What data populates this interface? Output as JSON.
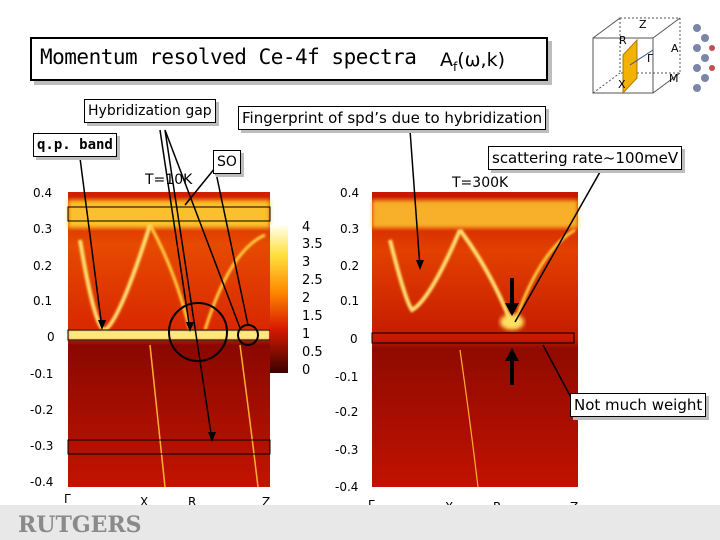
{
  "slide": {
    "title": "Momentum resolved Ce-4f spectra",
    "formula_main": "A",
    "formula_sub": "f",
    "formula_tail": "(ω,k)"
  },
  "annotations": {
    "hybridization_gap": "Hybridization gap",
    "fingerprint": "Fingerprint of spd’s due to hybridization",
    "qp_band": "q.p. band",
    "so": "SO",
    "scattering_rate": "scattering rate~100meV",
    "not_much_weight": "Not much weight"
  },
  "brillouin_zone": {
    "labels": [
      "Z",
      "R",
      "Γ",
      "A",
      "X",
      "M"
    ]
  },
  "chart_data": [
    {
      "type": "heatmap",
      "temperature_label": "T=10K",
      "y_ticks": [
        "0.4",
        "0.3",
        "0.2",
        "0.1",
        "0",
        "-0.1",
        "-0.2",
        "-0.3",
        "-0.4"
      ],
      "y_values": [
        0.4,
        0.3,
        0.2,
        0.1,
        0,
        -0.1,
        -0.2,
        -0.3,
        -0.4
      ],
      "ylim": [
        -0.4,
        0.4
      ],
      "x_ticks": [
        "Γ",
        "X",
        "R",
        "Z"
      ],
      "colorbar_ticks": [
        "4",
        "3.5",
        "3",
        "2.5",
        "2",
        "1.5",
        "1",
        "0.5",
        "0"
      ],
      "colorbar_range": [
        0,
        4
      ]
    },
    {
      "type": "heatmap",
      "temperature_label": "T=300K",
      "y_ticks": [
        "0.4",
        "0.3",
        "0.2",
        "0.1",
        "0",
        "-0.1",
        "-0.2",
        "-0.3",
        "-0.4"
      ],
      "y_values": [
        0.4,
        0.3,
        0.2,
        0.1,
        0,
        -0.1,
        -0.2,
        -0.3,
        -0.4
      ],
      "ylim": [
        -0.4,
        0.4
      ],
      "x_ticks": [
        "Γ",
        "X",
        "R",
        "Z"
      ]
    }
  ],
  "footer": {
    "logo_text": "RUTGERS"
  },
  "colors": {
    "heat_dark": "#5a0000",
    "heat_red": "#c81400",
    "heat_orange": "#ff7a00",
    "heat_yellow": "#ffe040",
    "zone_plane": "#f2b200"
  }
}
